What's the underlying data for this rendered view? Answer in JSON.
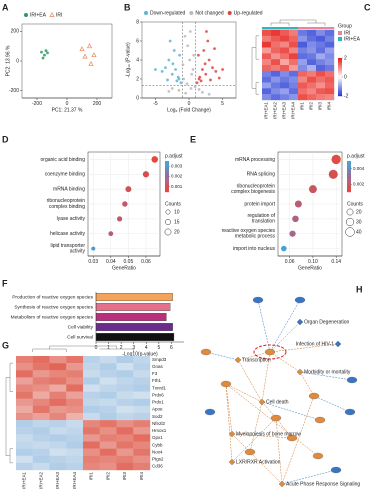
{
  "chart_data": [
    {
      "type": "scatter",
      "panel_label": "A",
      "x_label": "PC1: 21.37 %",
      "y_label": "PC2: 13.96 %",
      "xlim": [
        -300,
        300
      ],
      "ylim": [
        -250,
        250
      ],
      "xticks": [
        -200,
        0,
        200
      ],
      "yticks": [
        -200,
        0,
        200
      ],
      "series": [
        {
          "name": "IRI+EA",
          "color": "#2e9a5e",
          "marker": "circle",
          "x": [
            -170,
            -150,
            -130,
            -160,
            -140
          ],
          "values": [
            60,
            40,
            55,
            20,
            70
          ]
        },
        {
          "name": "IRI",
          "color": "#e8865a",
          "marker": "triangle",
          "x": [
            100,
            150,
            180,
            120,
            160
          ],
          "values": [
            80,
            100,
            40,
            30,
            -20
          ]
        }
      ]
    },
    {
      "type": "scatter",
      "panel_label": "B",
      "x_label": "Log₂ (Fold Change)",
      "y_label": "-Log₁₀ (P-value)",
      "xlim": [
        -7,
        7
      ],
      "ylim": [
        0,
        8
      ],
      "xticks": [
        -5,
        0,
        5
      ],
      "yticks": [
        0,
        2,
        4,
        6,
        8
      ],
      "vlines": [
        -1,
        1
      ],
      "hlines": [
        1.3
      ],
      "series": [
        {
          "name": "Down-regulated",
          "color": "#5bb5d5",
          "marker": "circle",
          "x": [
            -1.5,
            -2,
            -2.5,
            -3,
            -1.8,
            -2.2,
            -3.5,
            -1.2,
            -4,
            -2.8,
            -1.6,
            -2.4,
            -3.2,
            -1.4,
            -5
          ],
          "values": [
            2,
            3,
            2.5,
            4,
            1.8,
            5,
            3.2,
            1.6,
            2.8,
            6,
            2.2,
            3.6,
            1.9,
            4.5,
            3
          ]
        },
        {
          "name": "Not changed",
          "color": "#bbbbbb",
          "marker": "circle",
          "x": [
            -0.5,
            0.3,
            -0.8,
            0.6,
            0.1,
            -0.2,
            0.9,
            -0.6,
            0.4,
            -1.5,
            2,
            -2.5,
            1.5,
            0.2,
            -0.9,
            0.7,
            -0.3,
            3,
            -3
          ],
          "values": [
            0.5,
            1,
            2,
            3,
            4,
            5.5,
            1.2,
            6.5,
            2.5,
            0.8,
            0.6,
            1,
            0.9,
            7,
            3.5,
            4.5,
            1.5,
            0.4,
            0.7
          ]
        },
        {
          "name": "Up-regulated",
          "color": "#e0443e",
          "marker": "circle",
          "x": [
            1.5,
            2,
            2.5,
            3,
            1.8,
            2.2,
            3.5,
            1.2,
            4,
            2.8,
            1.6,
            2.4,
            3.2,
            1.4,
            5,
            4.5,
            2.6,
            3.8
          ],
          "values": [
            2,
            3,
            2.5,
            4,
            1.8,
            5,
            3.2,
            1.6,
            2.8,
            6,
            2.2,
            3.6,
            1.9,
            4.5,
            3,
            2.1,
            7,
            5.2
          ]
        }
      ]
    },
    {
      "type": "heatmap",
      "panel_label": "C",
      "columns": [
        "IRI+EA1",
        "IRI+EA2",
        "IRI+EA3",
        "IRI+EA4",
        "IRI1",
        "IRI2",
        "IRI3",
        "IRI4"
      ],
      "colormap": [
        "#2b3fd6",
        "#ffffff",
        "#e8231c"
      ],
      "clim": [
        -2,
        2
      ],
      "colorbar_ticks": [
        2,
        0,
        -2
      ],
      "group_title": "Group",
      "groups": [
        {
          "name": "IRI",
          "color": "#e8879a"
        },
        {
          "name": "IRI+EA",
          "color": "#28b8c0"
        }
      ],
      "values": [
        [
          1.6,
          1.8,
          1.5,
          1.2,
          -1.4,
          -1.6,
          -1.2,
          -1.5
        ],
        [
          1.2,
          1.5,
          1.7,
          1.4,
          -1.1,
          -1.5,
          -1.7,
          -1.3
        ],
        [
          1.8,
          1.3,
          1.1,
          1.6,
          -1.7,
          -1.2,
          -1.4,
          -1.6
        ],
        [
          0.9,
          1.4,
          1.6,
          1.1,
          -1.3,
          -1.1,
          -1.5,
          -1.0
        ],
        [
          1.5,
          1.0,
          1.3,
          1.7,
          -1.5,
          -1.4,
          -0.9,
          -1.2
        ],
        [
          1.1,
          1.6,
          0.8,
          1.3,
          -1.0,
          -1.6,
          -1.3,
          -1.1
        ],
        [
          1.4,
          1.2,
          1.5,
          0.9,
          -1.2,
          -0.8,
          -1.6,
          -1.4
        ],
        [
          -1.3,
          -1.6,
          -1.2,
          -1.5,
          1.4,
          1.2,
          1.6,
          1.3
        ],
        [
          -1.5,
          -1.1,
          -1.4,
          -1.2,
          1.1,
          1.6,
          1.3,
          1.5
        ],
        [
          -1.0,
          -1.4,
          -1.6,
          -1.3,
          1.5,
          1.3,
          1.0,
          1.4
        ],
        [
          -1.6,
          -1.2,
          -1.0,
          -1.5,
          1.3,
          1.1,
          1.5,
          1.6
        ],
        [
          -1.2,
          -1.5,
          -1.3,
          -1.1,
          1.6,
          1.4,
          1.2,
          1.1
        ]
      ]
    },
    {
      "type": "dot",
      "panel_label": "D",
      "x_label": "GeneRatio",
      "categories": [
        "organic acid binding",
        "coenzyme binding",
        "mRNA binding",
        "ribonucleoprotein complex binding",
        "lyase activity",
        "helicase activity",
        "lipid transporter activity"
      ],
      "values": [
        0.065,
        0.06,
        0.05,
        0.048,
        0.045,
        0.04,
        0.03
      ],
      "sizes": [
        22,
        20,
        18,
        15,
        14,
        12,
        8
      ],
      "p_adjust": [
        0.0006,
        0.0008,
        0.001,
        0.0012,
        0.0013,
        0.0015,
        0.0032
      ],
      "xlim": [
        0.027,
        0.068
      ],
      "xticks": [
        0.03,
        0.04,
        0.05,
        0.06
      ],
      "color_title": "p.adjust",
      "colormap": [
        "#e8473a",
        "#9a6a9a",
        "#3aa6dc"
      ],
      "clim": [
        0.0005,
        0.0035
      ],
      "color_ticks": [
        0.003,
        0.002,
        0.001
      ],
      "size_title": "Counts",
      "size_ticks": [
        10,
        15,
        20
      ]
    },
    {
      "type": "dot",
      "panel_label": "E",
      "x_label": "GeneRatio",
      "categories": [
        "mRNA processing",
        "RNA splicing",
        "ribonucleoprotein complex biogenesis",
        "protein import",
        "regulation of translation",
        "reactive oxygen species metabolic process",
        "import into nucleus"
      ],
      "values": [
        0.14,
        0.135,
        0.1,
        0.075,
        0.07,
        0.065,
        0.05
      ],
      "sizes": [
        45,
        42,
        32,
        25,
        22,
        20,
        16
      ],
      "p_adjust": [
        0.0012,
        0.0014,
        0.0018,
        0.0022,
        0.0025,
        0.0027,
        0.0048
      ],
      "xlim": [
        0.04,
        0.15
      ],
      "xticks": [
        0.06,
        {
          "value": 0.1,
          "label": "0.10"
        },
        0.14
      ],
      "color_title": "p.adjust",
      "colormap": [
        "#e8473a",
        "#9a6a9a",
        "#3aa6dc"
      ],
      "clim": [
        0.001,
        0.005
      ],
      "color_ticks": [
        0.004,
        0.002
      ],
      "size_title": "Counts",
      "size_ticks": [
        20,
        30,
        40
      ]
    },
    {
      "type": "barh",
      "panel_label": "F",
      "x_label": "-Log10(p-value)",
      "categories": [
        "Production of reactive oxygen species",
        "Synthesis of reactive oxygen species",
        "Metabolism of reactive oxygen species",
        "Cell viability",
        "Cell survival"
      ],
      "values": [
        6.1,
        5.9,
        5.6,
        6.1,
        6.2
      ],
      "colors": [
        "#f5a35a",
        "#e4708a",
        "#b8307c",
        "#6a2d8c",
        "#111111"
      ],
      "xlim": [
        0,
        7
      ],
      "xticks": [
        0,
        1,
        2,
        3,
        4,
        5,
        6
      ]
    },
    {
      "type": "heatmap",
      "panel_label": "G",
      "columns": [
        "IRI+EA1",
        "IRI+EA2",
        "IRI+EA3",
        "IRI+EA4",
        "IRI1",
        "IRI2",
        "IRI3",
        "IRI4"
      ],
      "rows": [
        "Smpd3",
        "Gnas",
        "F3",
        "Fth1",
        "Txnrd1",
        "Prdx6",
        "Prdx1",
        "Apoe",
        "Sod2",
        "Nfe2l2",
        "Hmox1",
        "Gpx1",
        "Cybb",
        "Nox4",
        "Ptgs2",
        "Cd36"
      ],
      "colormap": [
        "#5b9bd5",
        "#f7f7f7",
        "#de4b3a"
      ],
      "clim": [
        -2,
        2
      ],
      "values": [
        [
          1.4,
          1.6,
          1.2,
          1.5,
          -0.8,
          -0.6,
          -0.9,
          -0.7
        ],
        [
          1.2,
          1.5,
          1.7,
          1.1,
          -0.7,
          -0.9,
          -0.5,
          -0.8
        ],
        [
          1.6,
          1.1,
          1.3,
          1.4,
          -0.6,
          -0.8,
          -0.9,
          -0.6
        ],
        [
          1.0,
          1.4,
          1.5,
          1.2,
          -0.9,
          -0.5,
          -0.7,
          -0.8
        ],
        [
          1.3,
          1.2,
          0.9,
          1.6,
          -0.5,
          -0.7,
          -0.8,
          -0.9
        ],
        [
          1.5,
          0.9,
          1.4,
          1.0,
          -0.8,
          -0.9,
          -0.6,
          -0.5
        ],
        [
          1.1,
          1.3,
          1.6,
          1.3,
          -0.7,
          -0.6,
          -0.8,
          -0.9
        ],
        [
          0.9,
          1.5,
          1.1,
          1.2,
          -0.9,
          -0.8,
          -0.5,
          -0.6
        ],
        [
          1.2,
          1.0,
          1.3,
          0.8,
          -0.6,
          -0.9,
          -0.7,
          -0.8
        ],
        [
          -0.9,
          -0.7,
          -0.8,
          -0.6,
          1.3,
          1.5,
          1.2,
          1.4
        ],
        [
          -0.8,
          -0.9,
          -0.6,
          -0.7,
          1.5,
          1.2,
          1.6,
          1.1
        ],
        [
          -0.6,
          -0.8,
          -0.9,
          -0.8,
          1.1,
          1.4,
          1.3,
          1.6
        ],
        [
          -0.7,
          -0.6,
          -0.7,
          -0.9,
          1.6,
          1.1,
          1.5,
          1.3
        ],
        [
          -0.9,
          -0.8,
          -0.5,
          -0.6,
          1.2,
          1.6,
          1.1,
          1.5
        ],
        [
          -0.5,
          -0.9,
          -0.8,
          -0.7,
          1.4,
          1.3,
          1.4,
          1.2
        ],
        [
          -0.8,
          -0.6,
          -0.9,
          -0.8,
          1.3,
          1.2,
          1.6,
          1.4
        ]
      ]
    }
  ],
  "network": {
    "panel_label": "H",
    "nodes": [
      {
        "label": "Organ Degeneration"
      },
      {
        "label": "Infection of HIV-1"
      },
      {
        "label": "Transcription"
      },
      {
        "label": "Morbidity or mortality"
      },
      {
        "label": "Cell death"
      },
      {
        "label": "Myelopoiesis of bone marrow"
      },
      {
        "label": "LXR/RXR Activation"
      },
      {
        "label": "Acute Phase Response Signaling"
      }
    ]
  }
}
